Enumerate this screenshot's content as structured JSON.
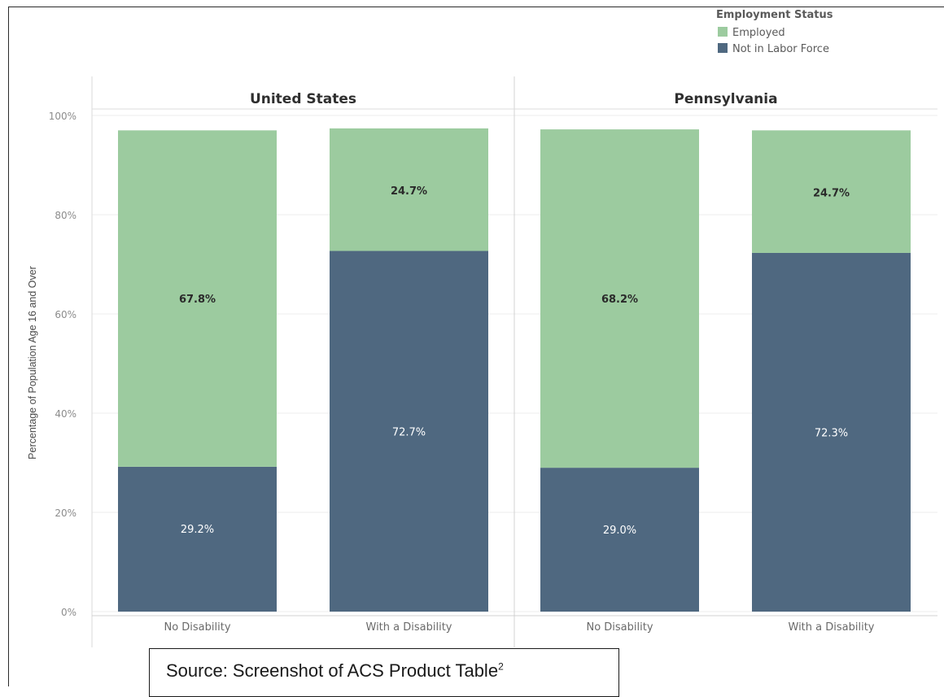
{
  "source": {
    "text": "Source: Screenshot of ACS Product Table",
    "superscript": "2"
  },
  "chart_data": {
    "type": "bar",
    "stacked": true,
    "ylabel": "Percentage of Population Age 16 and Over",
    "ylim": [
      0,
      100
    ],
    "yticks": [
      "0%",
      "20%",
      "40%",
      "60%",
      "80%",
      "100%"
    ],
    "grid": true,
    "legend": {
      "title": "Employment Status",
      "placement": "top-right",
      "entries": [
        {
          "name": "Employed",
          "color": "#9ccb9f"
        },
        {
          "name": "Not in Labor Force",
          "color": "#4f6880"
        }
      ]
    },
    "panels": [
      {
        "title": "United States",
        "categories": [
          "No Disability",
          "With a Disability"
        ],
        "series": [
          {
            "name": "Not in Labor Force",
            "values": [
              29.2,
              72.7
            ],
            "labels": [
              "29.2%",
              "72.7%"
            ]
          },
          {
            "name": "Employed",
            "values": [
              67.8,
              24.7
            ],
            "labels": [
              "67.8%",
              "24.7%"
            ]
          }
        ]
      },
      {
        "title": "Pennsylvania",
        "categories": [
          "No Disability",
          "With a Disability"
        ],
        "series": [
          {
            "name": "Not in Labor Force",
            "values": [
              29.0,
              72.3
            ],
            "labels": [
              "29.0%",
              "72.3%"
            ]
          },
          {
            "name": "Employed",
            "values": [
              68.2,
              24.7
            ],
            "labels": [
              "68.2%",
              "24.7%"
            ]
          }
        ]
      }
    ]
  }
}
